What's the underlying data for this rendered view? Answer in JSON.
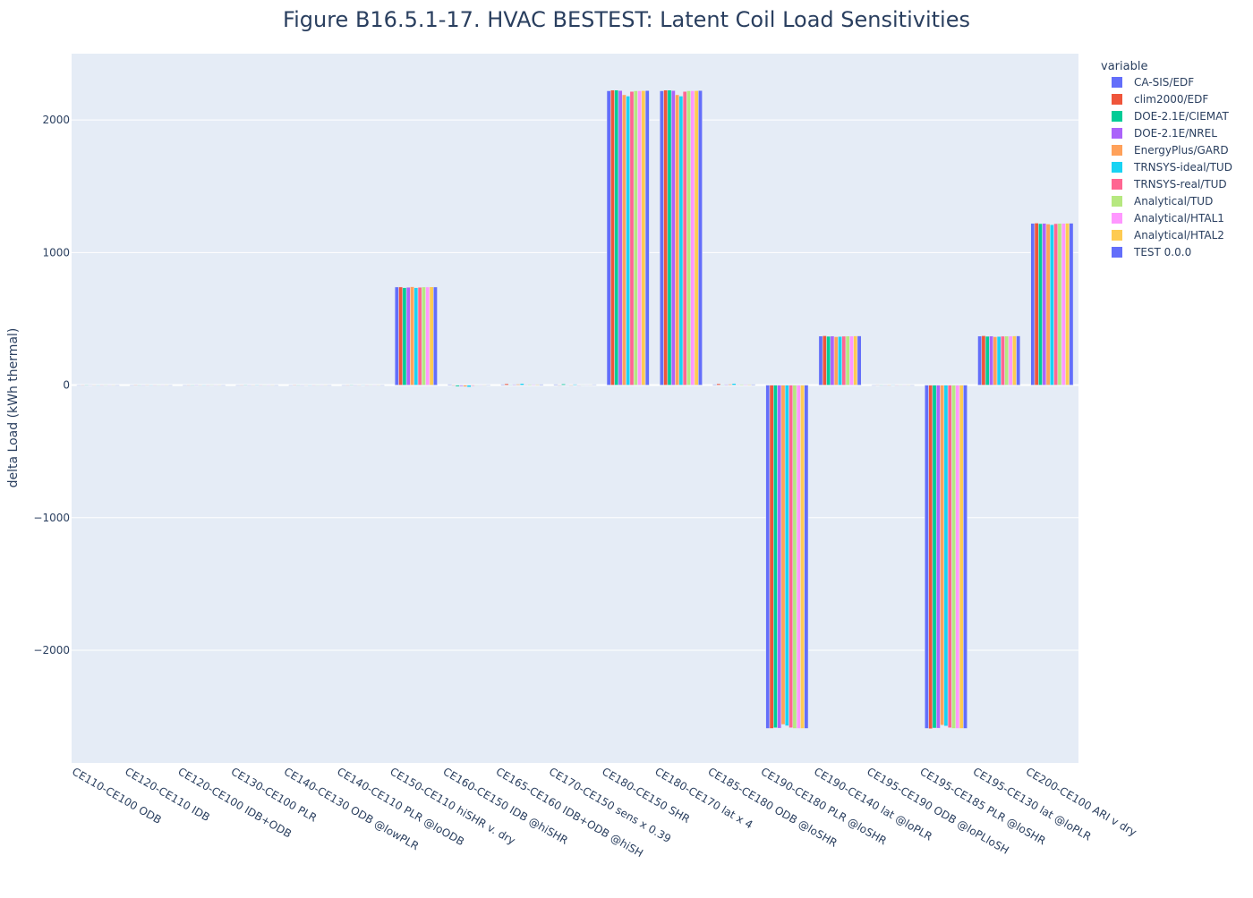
{
  "chart_data": {
    "type": "bar",
    "title": "Figure B16.5.1-17. HVAC BESTEST: Latent Coil Load Sensitivities",
    "xlabel": "",
    "ylabel": "delta Load  (kWh thermal)",
    "ylim": [
      -2850,
      2500
    ],
    "yticks": [
      -2000,
      -1000,
      0,
      1000,
      2000
    ],
    "ytick_labels": [
      "−2000",
      "−1000",
      "0",
      "1000",
      "2000"
    ],
    "grid": true,
    "legend": {
      "title": "variable",
      "placement": "right"
    },
    "categories": [
      "CE110-CE100 ODB",
      "CE120-CE110 IDB",
      "CE120-CE100 IDB+ODB",
      "CE130-CE100 PLR",
      "CE140-CE130 ODB @lowPLR",
      "CE140-CE110 PLR @loODB",
      "CE150-CE110 hiSHR v. dry",
      "CE160-CE150 IDB @hiSHR",
      "CE165-CE160 IDB+ODB @hiSH",
      "CE170-CE150 sens x 0.39",
      "CE180-CE150 SHR",
      "CE180-CE170 lat x 4",
      "CE185-CE180 ODB @loSHR",
      "CE190-CE180 PLR @loSHR",
      "CE190-CE140 lat @loPLR",
      "CE195-CE190 ODB @loPLloSH",
      "CE195-CE185 PLR @loSHR",
      "CE195-CE130 lat @loPLR",
      "CE200-CE100 ARI v dry"
    ],
    "series": [
      {
        "name": "CA-SIS/EDF",
        "color": "#636efa",
        "values": [
          0,
          0,
          0,
          0,
          0,
          0,
          740,
          5,
          5,
          5,
          2220,
          2220,
          5,
          -2590,
          370,
          -3,
          -2590,
          370,
          1220
        ]
      },
      {
        "name": "clim2000/EDF",
        "color": "#EF553B",
        "values": [
          -2,
          1,
          -1,
          0,
          1,
          0,
          740,
          -5,
          10,
          -3,
          2225,
          2225,
          10,
          -2590,
          372,
          2,
          -2592,
          372,
          1222
        ]
      },
      {
        "name": "DOE-2.1E/CIEMAT",
        "color": "#00cc96",
        "values": [
          1,
          -1,
          0,
          1,
          -1,
          1,
          735,
          -10,
          3,
          8,
          2225,
          2225,
          3,
          -2585,
          368,
          -2,
          -2587,
          368,
          1218
        ]
      },
      {
        "name": "DOE-2.1E/NREL",
        "color": "#ab63fa",
        "values": [
          2,
          0,
          1,
          -1,
          0,
          -1,
          738,
          -8,
          5,
          3,
          2222,
          2222,
          5,
          -2588,
          370,
          0,
          -2588,
          370,
          1220
        ]
      },
      {
        "name": "EnergyPlus/GARD",
        "color": "#FFA15A",
        "values": [
          0,
          1,
          0,
          0,
          2,
          0,
          742,
          -12,
          7,
          -5,
          2190,
          2190,
          7,
          -2560,
          365,
          -5,
          -2565,
          365,
          1215
        ]
      },
      {
        "name": "TRNSYS-ideal/TUD",
        "color": "#19d3f3",
        "values": [
          -1,
          0,
          -2,
          1,
          0,
          2,
          735,
          -15,
          12,
          6,
          2180,
          2180,
          12,
          -2570,
          367,
          3,
          -2572,
          367,
          1210
        ]
      },
      {
        "name": "TRNSYS-real/TUD",
        "color": "#FF6692",
        "values": [
          0,
          -1,
          0,
          0,
          -1,
          0,
          738,
          -6,
          4,
          -2,
          2215,
          2215,
          4,
          -2585,
          369,
          -1,
          -2585,
          369,
          1218
        ]
      },
      {
        "name": "Analytical/TUD",
        "color": "#B6E880",
        "values": [
          1,
          0,
          1,
          0,
          0,
          0,
          740,
          0,
          6,
          2,
          2220,
          2220,
          6,
          -2590,
          370,
          0,
          -2590,
          370,
          1220
        ]
      },
      {
        "name": "Analytical/HTAL1",
        "color": "#FF97FF",
        "values": [
          0,
          0,
          0,
          0,
          0,
          0,
          740,
          0,
          5,
          2,
          2220,
          2220,
          5,
          -2590,
          370,
          0,
          -2590,
          370,
          1220
        ]
      },
      {
        "name": "Analytical/HTAL2",
        "color": "#FECB52",
        "values": [
          0,
          0,
          0,
          0,
          0,
          0,
          741,
          0,
          5,
          2,
          2221,
          2221,
          5,
          -2590,
          371,
          0,
          -2590,
          371,
          1221
        ]
      },
      {
        "name": "TEST 0.0.0",
        "color": "#636efa",
        "values": [
          0,
          0,
          0,
          0,
          0,
          0,
          740,
          2,
          5,
          4,
          2222,
          2222,
          5,
          -2590,
          371,
          0,
          -2590,
          371,
          1221
        ]
      }
    ]
  }
}
